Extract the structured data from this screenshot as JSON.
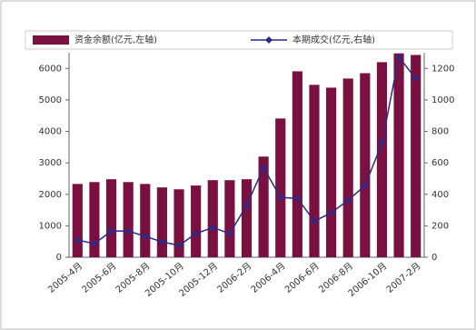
{
  "chart_data": {
    "type": "bar-line",
    "categories": [
      "2005-4月",
      null,
      "2005-6月",
      null,
      "2005-8月",
      null,
      "2005-10月",
      null,
      "2005-12月",
      null,
      "2006-2月",
      null,
      "2006-4月",
      null,
      "2006-6月",
      null,
      "2006-8月",
      null,
      "2006-10月",
      null,
      "2007-2月"
    ],
    "series": [
      {
        "name": "资金余额(亿元,左轴)",
        "color": "#7a1040",
        "type": "bar",
        "values": [
          2330,
          2390,
          2480,
          2390,
          2330,
          2220,
          2160,
          2280,
          2450,
          2450,
          2480,
          3200,
          4410,
          5910,
          5480,
          5390,
          5680,
          5850,
          6200,
          6480,
          6430
        ]
      },
      {
        "name": "本期成交(亿元,右轴)",
        "color": "#2a2a8a",
        "type": "line",
        "axis": "y2",
        "values": [
          110,
          86,
          167,
          167,
          133,
          98,
          75,
          150,
          190,
          150,
          330,
          570,
          380,
          375,
          230,
          282,
          363,
          455,
          726,
          1274,
          1135
        ]
      }
    ],
    "ylim": [
      0,
      6500
    ],
    "yticks": [
      0,
      1000,
      2000,
      3000,
      4000,
      5000,
      6000
    ],
    "y2lim": [
      0,
      1300
    ],
    "y2ticks": [
      0,
      200,
      400,
      600,
      800,
      1000,
      1200
    ]
  }
}
